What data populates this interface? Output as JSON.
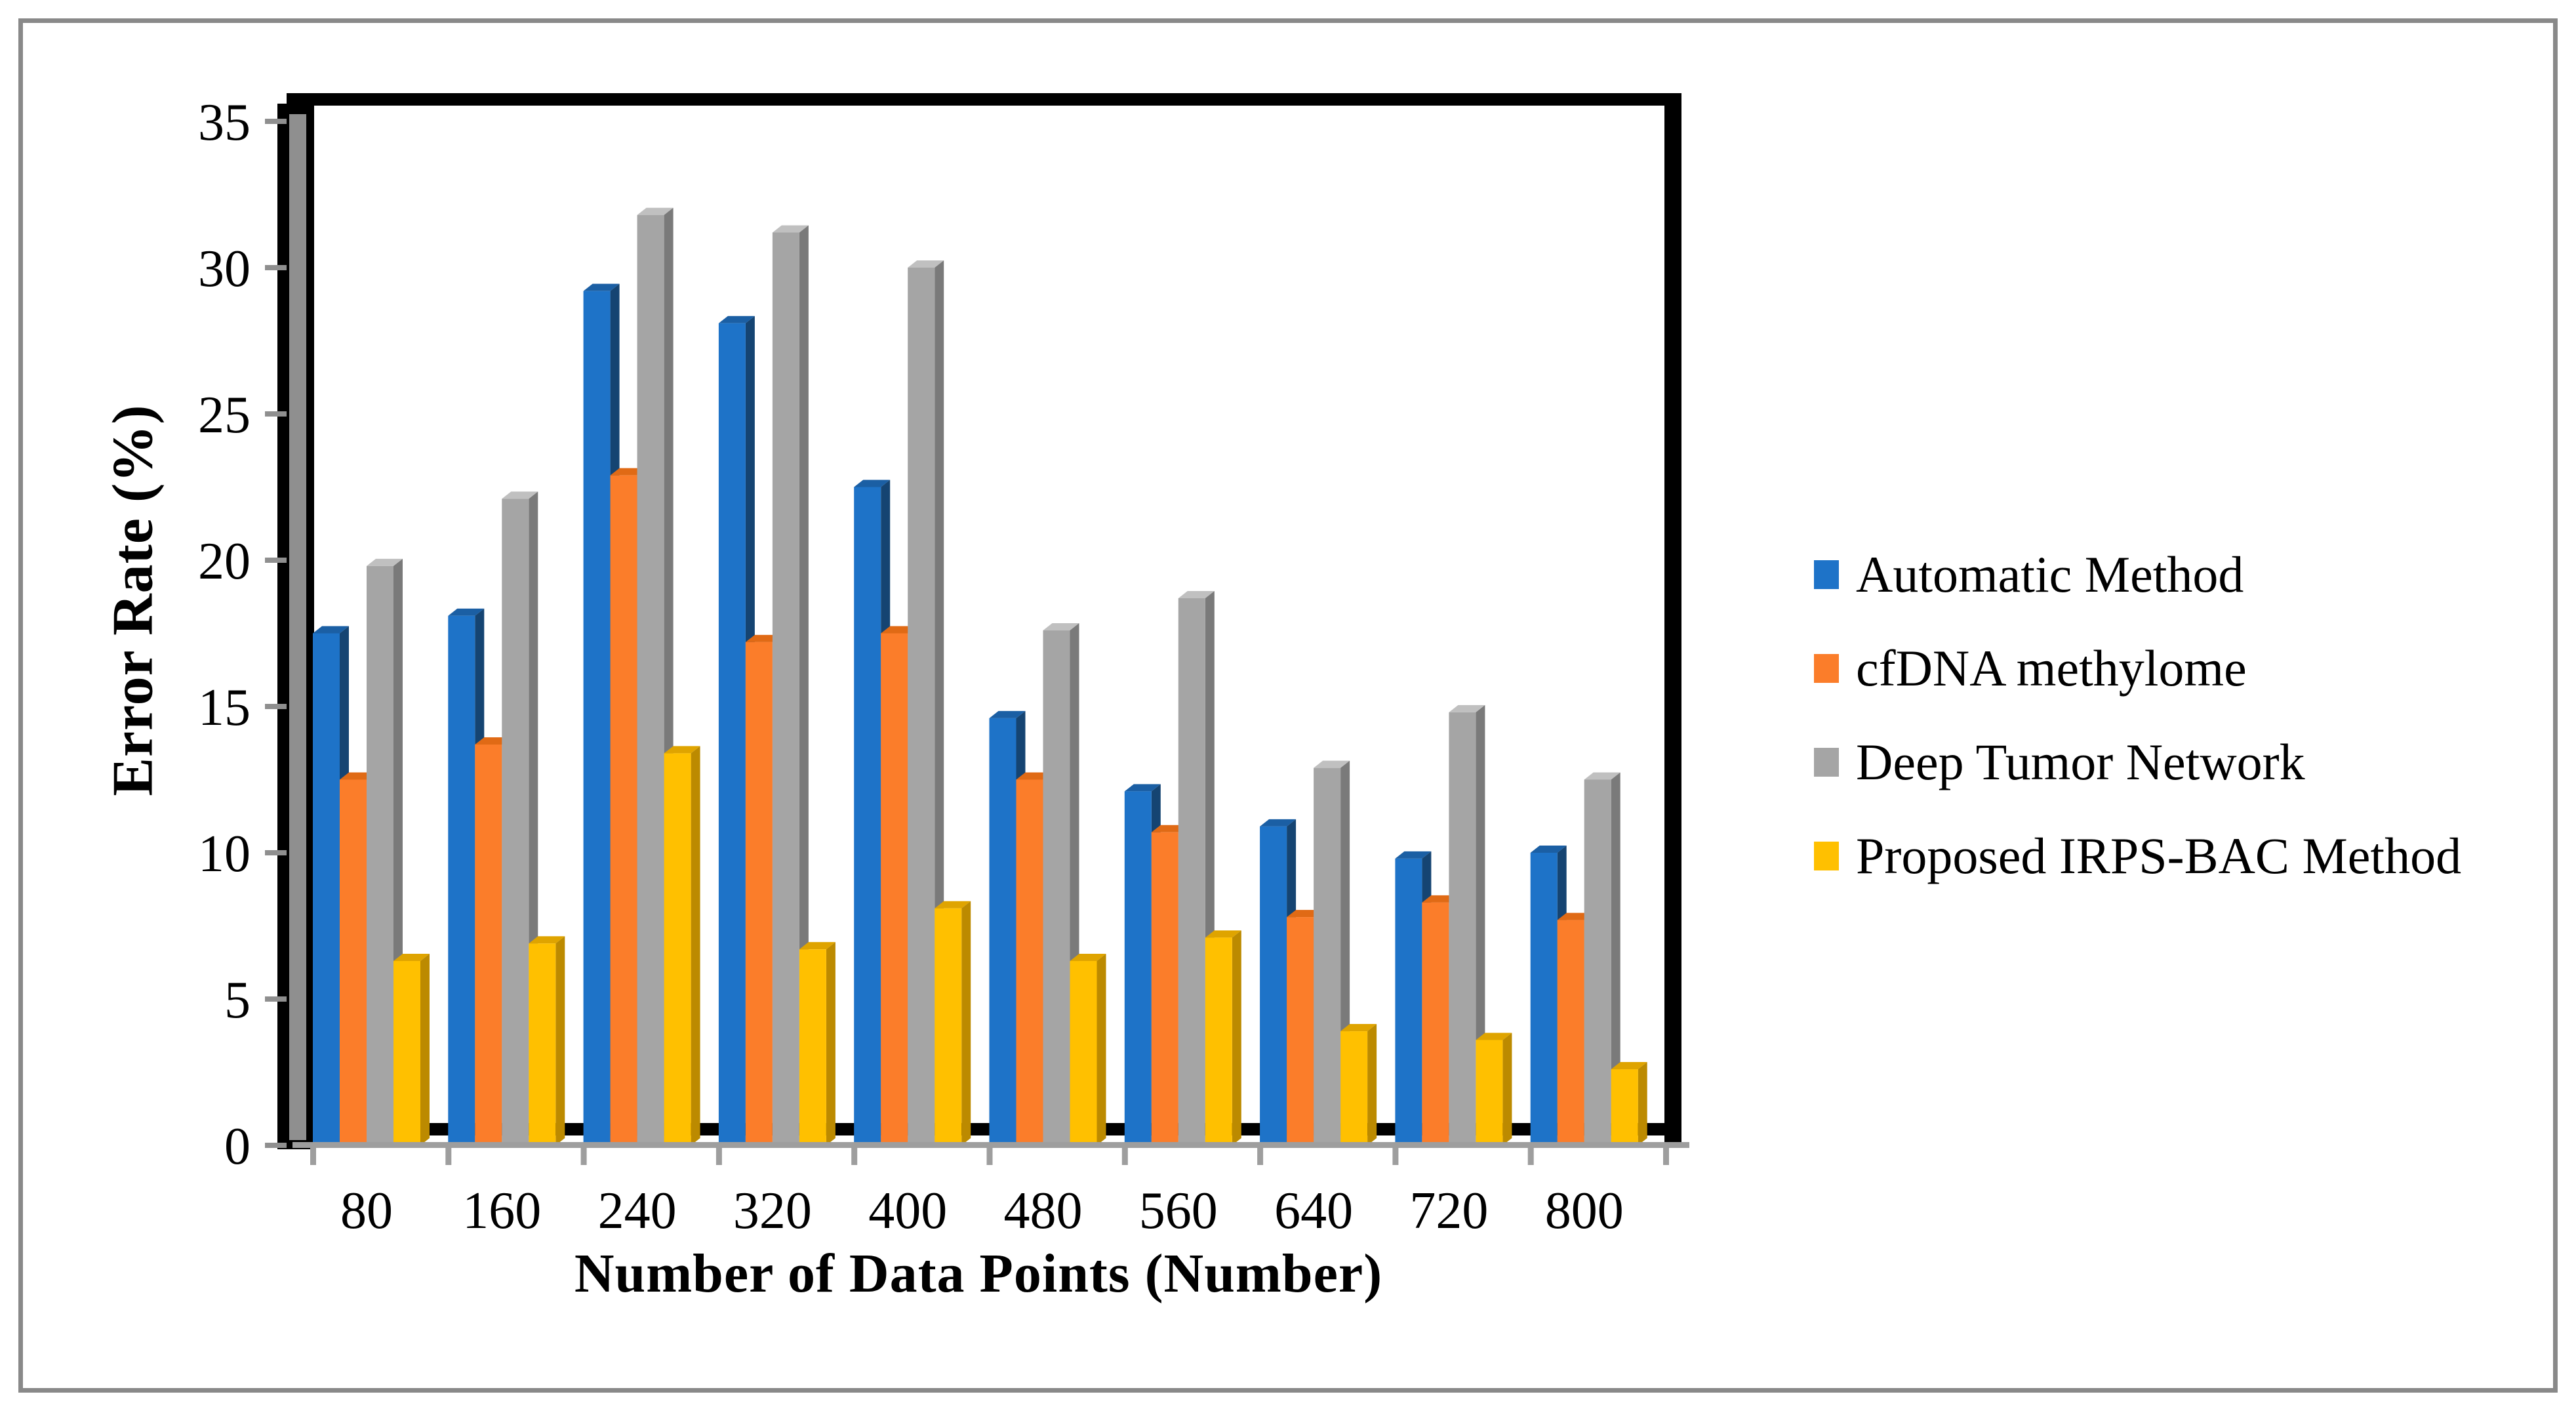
{
  "figure": {
    "background": "#ffffff",
    "border_color": "#898989",
    "wall_color": "#000000",
    "wall_face_color": "#8F8F8F",
    "floor_color": "#9E9E9E",
    "tick_color": "#8F8F8F"
  },
  "chart_data": {
    "type": "bar",
    "style": "3d-clustered",
    "title": "",
    "xlabel": "Number of Data Points (Number)",
    "ylabel": "Error Rate (%)",
    "categories": [
      "80",
      "160",
      "240",
      "320",
      "400",
      "480",
      "560",
      "640",
      "720",
      "800"
    ],
    "y_ticks": [
      0,
      5,
      10,
      15,
      20,
      25,
      30,
      35
    ],
    "ylim": [
      0,
      35
    ],
    "grid": false,
    "legend_position": "right",
    "series": [
      {
        "name": "Automatic Method",
        "color": "#1E73C8",
        "side_color": "#154472",
        "top_color": "#1B5FA4",
        "values": [
          17.5,
          18.1,
          29.2,
          28.1,
          22.5,
          14.6,
          12.1,
          10.9,
          9.8,
          10.0
        ]
      },
      {
        "name": "cfDNA methylome",
        "color": "#FB7D2A",
        "side_color": "#C25E10",
        "top_color": "#E06A15",
        "values": [
          12.5,
          13.7,
          22.9,
          17.2,
          17.5,
          12.5,
          10.7,
          7.8,
          8.3,
          7.7
        ]
      },
      {
        "name": "Deep Tumor Network",
        "color": "#A5A5A5",
        "side_color": "#7A7A7A",
        "top_color": "#C0C0C0",
        "values": [
          19.8,
          22.1,
          31.8,
          31.2,
          30.0,
          17.6,
          18.7,
          12.9,
          14.8,
          12.5
        ]
      },
      {
        "name": "Proposed IRPS-BAC Method",
        "color": "#FFC000",
        "side_color": "#BC8A00",
        "top_color": "#DFA400",
        "values": [
          6.3,
          6.9,
          13.4,
          6.7,
          8.1,
          6.3,
          7.1,
          3.9,
          3.6,
          2.6
        ]
      }
    ]
  }
}
